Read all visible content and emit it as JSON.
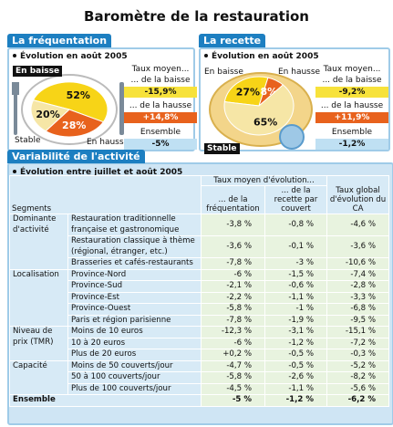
{
  "title": "Baromètre de la restauration",
  "frequentation": {
    "heading": "La fréquentation",
    "subtitle": "Évolution en août 2005",
    "slices": [
      {
        "label": "En baisse",
        "value": 52,
        "value_label": "52%",
        "color": "#f7d417"
      },
      {
        "label": "En hausse",
        "value": 28,
        "value_label": "28%",
        "color": "#e8621d"
      },
      {
        "label": "Stable",
        "value": 20,
        "value_label": "20%",
        "color": "#f6e6a6"
      }
    ],
    "rates": {
      "title": "Taux moyen...",
      "baisse_label": "... de la baisse",
      "baisse": "-15,9%",
      "hausse_label": "... de la hausse",
      "hausse": "+14,8%",
      "total_label": "Ensemble",
      "total": "-5%"
    }
  },
  "recette": {
    "heading": "La recette",
    "subtitle": "Évolution en août 2005",
    "slices": [
      {
        "label": "En baisse",
        "value": 27,
        "value_label": "27%",
        "color": "#f7d417"
      },
      {
        "label": "En hausse",
        "value": 8,
        "value_label": "8%",
        "color": "#e8621d"
      },
      {
        "label": "Stable",
        "value": 65,
        "value_label": "65%",
        "color": "#f6e6a6"
      }
    ],
    "rates": {
      "title": "Taux moyen...",
      "baisse_label": "... de la baisse",
      "baisse": "-9,2%",
      "hausse_label": "... de la hausse",
      "hausse": "+11,9%",
      "total_label": "Ensemble",
      "total": "-1,2%"
    }
  },
  "activity": {
    "heading": "Variabilité de l'activité",
    "subtitle": "Évolution entre juillet et août 2005",
    "header": {
      "segments": "Segments",
      "rate": "Taux moyen d'évolution...",
      "frequentation": "... de la fréquentation",
      "recette": "... de la recette par couvert",
      "ca": "Taux global d'évolution du CA"
    },
    "groups": [
      {
        "label": "Dominante d'activité",
        "rows": [
          {
            "label": "Restauration traditionnelle française et gastronomique",
            "values": [
              "-3,8 %",
              "-0,8 %",
              "-4,6 %"
            ]
          },
          {
            "label": "Restauration classique à thème (régional, étranger, etc.)",
            "values": [
              "-3,6 %",
              "-0,1 %",
              "-3,6 %"
            ]
          },
          {
            "label": "Brasseries et cafés-restaurants",
            "values": [
              "-7,8 %",
              "-3 %",
              "-10,6 %"
            ]
          }
        ]
      },
      {
        "label": "Localisation",
        "rows": [
          {
            "label": "Province-Nord",
            "values": [
              "-6 %",
              "-1,5 %",
              "-7,4 %"
            ]
          },
          {
            "label": "Province-Sud",
            "values": [
              "-2,1 %",
              "-0,6 %",
              "-2,8 %"
            ]
          },
          {
            "label": "Province-Est",
            "values": [
              "-2,2 %",
              "-1,1 %",
              "-3,3 %"
            ]
          },
          {
            "label": "Province-Ouest",
            "values": [
              "-5,8 %",
              "-1 %",
              "-6,8 %"
            ]
          },
          {
            "label": "Paris et région parisienne",
            "values": [
              "-7,8 %",
              "-1,9 %",
              "-9,5 %"
            ]
          }
        ]
      },
      {
        "label": "Niveau de prix (TMR)",
        "rows": [
          {
            "label": "Moins de 10 euros",
            "values": [
              "-12,3 %",
              "-3,1 %",
              "-15,1 %"
            ]
          },
          {
            "label": "10 à 20 euros",
            "values": [
              "-6 %",
              "-1,2 %",
              "-7,2 %"
            ]
          },
          {
            "label": "Plus de 20 euros",
            "values": [
              "+0,2 %",
              "-0,5 %",
              "-0,3 %"
            ]
          }
        ]
      },
      {
        "label": "Capacité",
        "rows": [
          {
            "label": "Moins de 50 couverts/jour",
            "values": [
              "-4,7 %",
              "-0,5 %",
              "-5,2 %"
            ]
          },
          {
            "label": "50 à 100 couverts/jour",
            "values": [
              "-5,8 %",
              "-2,6 %",
              "-8,2 %"
            ]
          },
          {
            "label": "Plus de 100 couverts/jour",
            "values": [
              "-4,5 %",
              "-1,1 %",
              "-5,6 %"
            ]
          }
        ]
      }
    ],
    "total": {
      "label": "Ensemble",
      "values": [
        "-5 %",
        "-1,2 %",
        "-6,2 %"
      ]
    }
  }
}
